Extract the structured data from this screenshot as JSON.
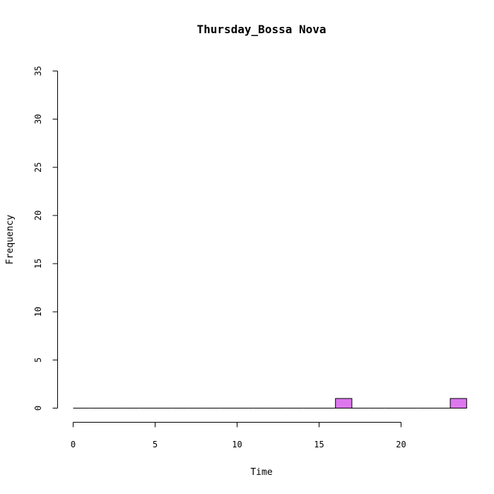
{
  "chart_data": {
    "type": "bar",
    "title": "Thursday_Bossa Nova",
    "xlabel": "Time",
    "ylabel": "Frequency",
    "xlim": [
      0,
      24
    ],
    "ylim": [
      0,
      35
    ],
    "x_ticks": [
      0,
      5,
      10,
      15,
      20
    ],
    "y_ticks": [
      0,
      5,
      10,
      15,
      20,
      25,
      30,
      35
    ],
    "bar_color": "#dd77ee",
    "bins": [
      {
        "start": 0,
        "end": 1,
        "value": 0
      },
      {
        "start": 1,
        "end": 2,
        "value": 0
      },
      {
        "start": 2,
        "end": 3,
        "value": 0
      },
      {
        "start": 3,
        "end": 4,
        "value": 0
      },
      {
        "start": 4,
        "end": 5,
        "value": 0
      },
      {
        "start": 5,
        "end": 6,
        "value": 0
      },
      {
        "start": 6,
        "end": 7,
        "value": 0
      },
      {
        "start": 7,
        "end": 8,
        "value": 0
      },
      {
        "start": 8,
        "end": 9,
        "value": 0
      },
      {
        "start": 9,
        "end": 10,
        "value": 0
      },
      {
        "start": 10,
        "end": 11,
        "value": 0
      },
      {
        "start": 11,
        "end": 12,
        "value": 0
      },
      {
        "start": 12,
        "end": 13,
        "value": 0
      },
      {
        "start": 13,
        "end": 14,
        "value": 0
      },
      {
        "start": 14,
        "end": 15,
        "value": 0
      },
      {
        "start": 15,
        "end": 16,
        "value": 0
      },
      {
        "start": 16,
        "end": 17,
        "value": 1
      },
      {
        "start": 17,
        "end": 18,
        "value": 0
      },
      {
        "start": 18,
        "end": 19,
        "value": 0
      },
      {
        "start": 19,
        "end": 20,
        "value": 0
      },
      {
        "start": 20,
        "end": 21,
        "value": 0
      },
      {
        "start": 21,
        "end": 22,
        "value": 0
      },
      {
        "start": 22,
        "end": 23,
        "value": 0
      },
      {
        "start": 23,
        "end": 24,
        "value": 1
      }
    ]
  }
}
